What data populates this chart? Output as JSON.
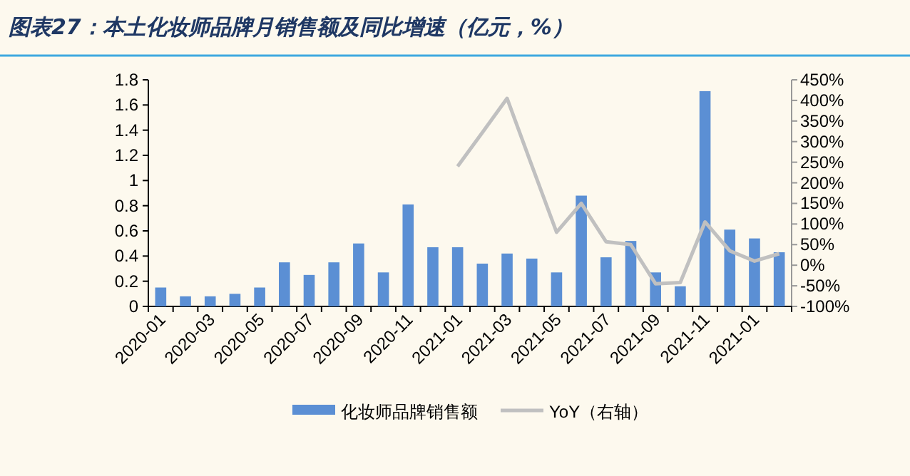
{
  "chart_data": {
    "type": "bar",
    "title": "图表27：本土化妆师品牌月销售额及同比增速（亿元，%）",
    "categories": [
      "2020-01",
      null,
      "2020-03",
      null,
      "2020-05",
      null,
      "2020-07",
      null,
      "2020-09",
      null,
      "2020-11",
      null,
      "2021-01",
      null,
      "2021-03",
      null,
      "2021-05",
      null,
      "2021-07",
      null,
      "2021-09",
      null,
      "2021-11",
      null,
      "2021-01",
      null
    ],
    "series": [
      {
        "name": "化妆师品牌销售额",
        "color": "#5b8fd4",
        "values": [
          0.15,
          0.08,
          0.08,
          0.1,
          0.15,
          0.35,
          0.25,
          0.35,
          0.5,
          0.27,
          0.81,
          0.47,
          0.47,
          0.34,
          0.42,
          0.38,
          0.27,
          0.88,
          0.39,
          0.52,
          0.27,
          0.16,
          1.71,
          0.61,
          0.54,
          0.43
        ]
      },
      {
        "name": "YoY（右轴）",
        "type": "line",
        "axis": "y2",
        "color": "#c0c0c0",
        "values": [
          null,
          null,
          null,
          null,
          null,
          null,
          null,
          null,
          null,
          null,
          null,
          null,
          240,
          322,
          405,
          242,
          80,
          150,
          57,
          50,
          -45,
          -42,
          105,
          35,
          10,
          28
        ]
      }
    ],
    "ylim": [
      0,
      1.8
    ],
    "yticks": [
      0,
      0.2,
      0.4,
      0.6,
      0.8,
      1,
      1.2,
      1.4,
      1.6,
      1.8
    ],
    "y2lim": [
      -100,
      450
    ],
    "y2ticks": [
      {
        "value": -100,
        "label": "-100%"
      },
      {
        "value": -50,
        "label": "-50%"
      },
      {
        "value": 0,
        "label": "0%"
      },
      {
        "value": 50,
        "label": "50%"
      },
      {
        "value": 100,
        "label": "100%"
      },
      {
        "value": 150,
        "label": "150%"
      },
      {
        "value": 200,
        "label": "200%"
      },
      {
        "value": 250,
        "label": "250%"
      },
      {
        "value": 300,
        "label": "300%"
      },
      {
        "value": 350,
        "label": "350%"
      },
      {
        "value": 400,
        "label": "400%"
      },
      {
        "value": 450,
        "label": "450%"
      }
    ],
    "legend": "bottom",
    "grid": false
  }
}
